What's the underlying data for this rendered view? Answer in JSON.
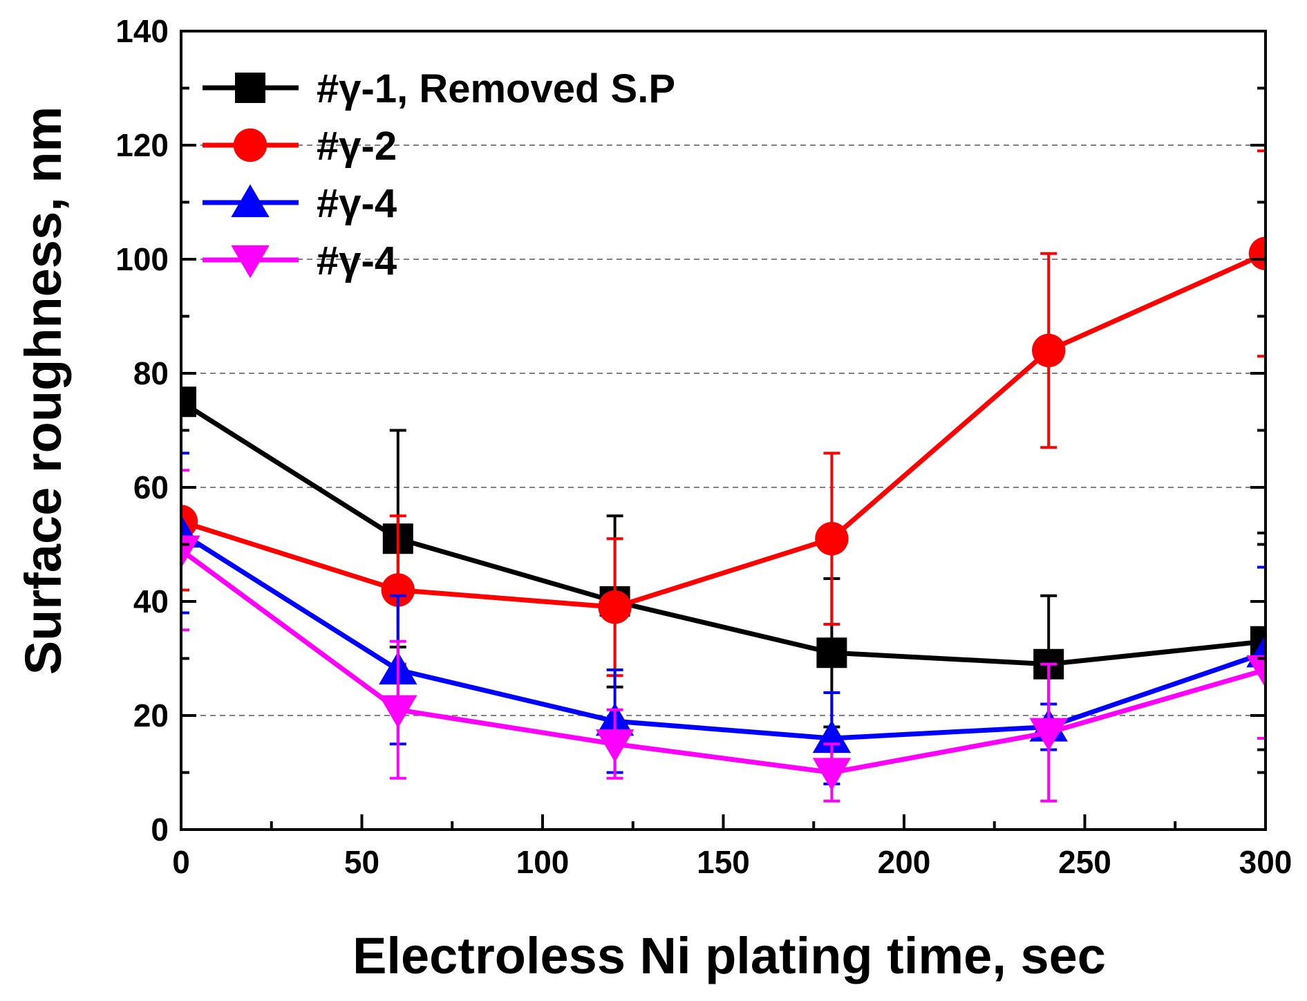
{
  "chart_data": {
    "type": "line",
    "title": "",
    "xlabel": "Electroless Ni plating time, sec",
    "ylabel": "Surface roughness, nm",
    "xlim": [
      0,
      300
    ],
    "ylim": [
      0,
      140
    ],
    "xticks": [
      0,
      50,
      100,
      150,
      200,
      250,
      300
    ],
    "yticks": [
      0,
      20,
      40,
      60,
      80,
      100,
      120,
      140
    ],
    "xtick_labels": [
      "0",
      "50",
      "100",
      "150",
      "200",
      "250",
      "300"
    ],
    "ytick_labels": [
      "0",
      "20",
      "40",
      "60",
      "80",
      "100",
      "120",
      "140"
    ],
    "x_minor_step": 25,
    "y_minor_step": 10,
    "grid": "horizontal dashed at 20, 60, 80, 100, 120",
    "grid_values": [
      20,
      60,
      80,
      100,
      120
    ],
    "legend_position": "top-left",
    "x": [
      0,
      60,
      120,
      180,
      240,
      300
    ],
    "series": [
      {
        "name": "#γ-1, Removed S.P",
        "color": "#000000",
        "marker": "square",
        "values": [
          75,
          51,
          40,
          31,
          29,
          33
        ],
        "error": [
          null,
          19,
          15,
          13,
          12,
          19
        ]
      },
      {
        "name": "#γ-2",
        "color": "#ff0000",
        "marker": "circle",
        "values": [
          54,
          42,
          39,
          51,
          84,
          101
        ],
        "error": [
          12,
          13,
          12,
          15,
          17,
          18
        ]
      },
      {
        "name": "#γ-4",
        "color": "#0000ff",
        "marker": "triangle-up",
        "values": [
          52,
          28,
          19,
          16,
          18,
          31
        ],
        "error": [
          14,
          13,
          9,
          8,
          4,
          15
        ]
      },
      {
        "name": "#γ-4",
        "color": "#ff00ff",
        "marker": "triangle-down",
        "values": [
          49,
          21,
          15,
          10,
          17,
          28
        ],
        "error": [
          14,
          12,
          6,
          5,
          12,
          12
        ]
      }
    ]
  }
}
